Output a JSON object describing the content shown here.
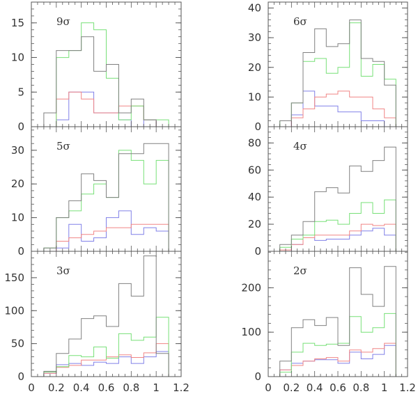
{
  "colors": {
    "total": "#808080",
    "green": "#77e077",
    "red": "#f08585",
    "blue": "#8080e8",
    "frame": "#555555"
  },
  "chart_data": [
    {
      "type": "bar",
      "label": "9σ",
      "bin_edges": [
        0.1,
        0.2,
        0.3,
        0.4,
        0.5,
        0.6,
        0.7,
        0.8,
        0.9,
        1.0,
        1.1
      ],
      "ylim": [
        0,
        18
      ],
      "yticks": [
        0,
        5,
        10,
        15
      ],
      "series": [
        {
          "color_key": "total",
          "values": [
            2,
            11,
            11,
            13,
            8,
            9,
            2,
            4,
            1,
            0
          ]
        },
        {
          "color_key": "green",
          "values": [
            0,
            10,
            11,
            15,
            14,
            7,
            1,
            3,
            1,
            1
          ]
        },
        {
          "color_key": "red",
          "values": [
            0,
            4,
            5,
            4,
            2,
            2,
            3,
            3,
            1,
            0
          ]
        },
        {
          "color_key": "blue",
          "values": [
            0,
            1,
            5,
            5,
            2,
            2,
            1,
            0,
            1,
            0
          ]
        }
      ]
    },
    {
      "type": "bar",
      "label": "6σ",
      "bin_edges": [
        0.1,
        0.2,
        0.3,
        0.4,
        0.5,
        0.6,
        0.7,
        0.8,
        0.9,
        1.0,
        1.1
      ],
      "ylim": [
        0,
        42
      ],
      "yticks": [
        0,
        10,
        20,
        30,
        40
      ],
      "series": [
        {
          "color_key": "total",
          "values": [
            2,
            8,
            25,
            33,
            27,
            28,
            36,
            23,
            22,
            14
          ]
        },
        {
          "color_key": "green",
          "values": [
            2,
            8,
            22,
            23,
            18,
            20,
            35,
            17,
            21,
            16
          ]
        },
        {
          "color_key": "red",
          "values": [
            0,
            3,
            6,
            10,
            11,
            12,
            10,
            10,
            6,
            3
          ]
        },
        {
          "color_key": "blue",
          "values": [
            0,
            4,
            12,
            7,
            7,
            5,
            5,
            2,
            2,
            0
          ]
        }
      ]
    },
    {
      "type": "bar",
      "label": "5σ",
      "bin_edges": [
        0.1,
        0.2,
        0.3,
        0.4,
        0.5,
        0.6,
        0.7,
        0.8,
        0.9,
        1.0,
        1.1
      ],
      "ylim": [
        0,
        37
      ],
      "yticks": [
        0,
        10,
        20,
        30
      ],
      "series": [
        {
          "color_key": "total",
          "values": [
            1,
            10,
            15,
            23,
            21,
            16,
            29,
            29,
            32,
            32
          ]
        },
        {
          "color_key": "green",
          "values": [
            1,
            10,
            12,
            17,
            20,
            16,
            30,
            27,
            20,
            27
          ]
        },
        {
          "color_key": "red",
          "values": [
            0,
            3,
            4,
            5,
            6,
            7,
            7,
            8,
            8,
            8
          ]
        },
        {
          "color_key": "blue",
          "values": [
            0,
            1,
            8,
            3,
            4,
            10,
            12,
            5,
            7,
            6
          ]
        }
      ]
    },
    {
      "type": "bar",
      "label": "4σ",
      "bin_edges": [
        0.1,
        0.2,
        0.3,
        0.4,
        0.5,
        0.6,
        0.7,
        0.8,
        0.9,
        1.0,
        1.1
      ],
      "ylim": [
        0,
        92
      ],
      "yticks": [
        0,
        20,
        40,
        60,
        80
      ],
      "series": [
        {
          "color_key": "total",
          "values": [
            5,
            12,
            22,
            44,
            47,
            43,
            63,
            59,
            67,
            77
          ]
        },
        {
          "color_key": "green",
          "values": [
            3,
            9,
            12,
            22,
            23,
            20,
            28,
            36,
            28,
            38
          ]
        },
        {
          "color_key": "red",
          "values": [
            1,
            5,
            10,
            12,
            12,
            12,
            15,
            20,
            19,
            20
          ]
        },
        {
          "color_key": "blue",
          "values": [
            0,
            5,
            10,
            8,
            9,
            9,
            12,
            15,
            17,
            12
          ]
        }
      ]
    },
    {
      "type": "bar",
      "label": "3σ",
      "bin_edges": [
        0.1,
        0.2,
        0.3,
        0.4,
        0.5,
        0.6,
        0.7,
        0.8,
        0.9,
        1.0,
        1.1
      ],
      "ylim": [
        0,
        190
      ],
      "yticks": [
        0,
        50,
        100,
        150
      ],
      "series": [
        {
          "color_key": "total",
          "values": [
            8,
            35,
            57,
            88,
            92,
            76,
            141,
            122,
            183,
            35
          ]
        },
        {
          "color_key": "green",
          "values": [
            7,
            15,
            32,
            30,
            45,
            28,
            65,
            55,
            60,
            90
          ]
        },
        {
          "color_key": "red",
          "values": [
            5,
            14,
            17,
            25,
            25,
            30,
            33,
            29,
            36,
            50
          ]
        },
        {
          "color_key": "blue",
          "values": [
            5,
            18,
            20,
            17,
            22,
            20,
            30,
            20,
            30,
            38
          ]
        }
      ]
    },
    {
      "type": "bar",
      "label": "2σ",
      "bin_edges": [
        0.1,
        0.2,
        0.3,
        0.4,
        0.5,
        0.6,
        0.7,
        0.8,
        0.9,
        1.0,
        1.1
      ],
      "ylim": [
        0,
        282
      ],
      "yticks": [
        0,
        100,
        200
      ],
      "series": [
        {
          "color_key": "total",
          "values": [
            35,
            110,
            128,
            115,
            133,
            70,
            245,
            185,
            158,
            248
          ]
        },
        {
          "color_key": "green",
          "values": [
            10,
            55,
            75,
            70,
            73,
            75,
            135,
            100,
            110,
            142
          ]
        },
        {
          "color_key": "red",
          "values": [
            15,
            25,
            35,
            40,
            43,
            35,
            60,
            55,
            63,
            75
          ]
        },
        {
          "color_key": "blue",
          "values": [
            15,
            30,
            35,
            38,
            38,
            30,
            55,
            40,
            50,
            70
          ]
        }
      ]
    }
  ],
  "x_axis": {
    "xlim": [
      0,
      1.2
    ],
    "ticks": [
      0,
      0.2,
      0.4,
      0.6,
      0.8,
      1,
      1.2
    ],
    "tick_labels": [
      "0",
      "0.2",
      "0.4",
      "0.6",
      "0.8",
      "1",
      "1.2"
    ]
  }
}
